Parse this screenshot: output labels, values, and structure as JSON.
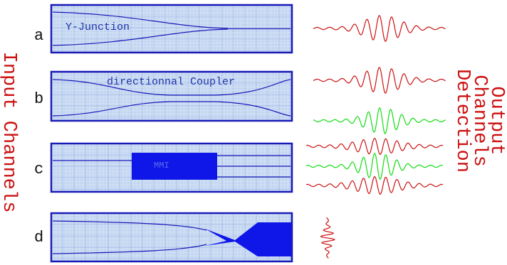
{
  "side_labels": {
    "left": "Input Channels",
    "right": [
      "Output",
      "Channels",
      "Detection"
    ]
  },
  "panels": [
    {
      "letter": "a",
      "caption": "Y-Junction"
    },
    {
      "letter": "b",
      "caption": "directionnal Coupler"
    },
    {
      "letter": "c",
      "caption": "MMI"
    },
    {
      "letter": "d",
      "caption": ""
    }
  ],
  "colors": {
    "panel_fill": "#cfe0f4",
    "panel_border": "#1a1ab8",
    "grid": "#6f8fd0",
    "waveguide": "#1a1ab8",
    "mmi_block": "#0f16e8",
    "wave_red": "#cc1111",
    "wave_green": "#11dd11",
    "label_red": "#cc1111"
  },
  "output_waves": [
    {
      "panel": "a",
      "color": "red"
    },
    {
      "panel": "b",
      "color": "red"
    },
    {
      "panel": "b",
      "color": "green"
    },
    {
      "panel": "c",
      "color": "red"
    },
    {
      "panel": "c",
      "color": "green"
    },
    {
      "panel": "c",
      "color": "red"
    },
    {
      "panel": "d",
      "color": "red"
    }
  ]
}
